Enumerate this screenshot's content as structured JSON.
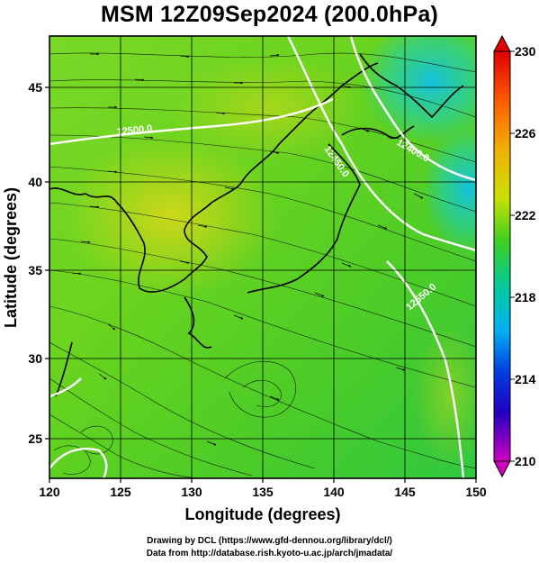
{
  "title": "MSM 12Z09Sep2024 (200.0hPa)",
  "axes": {
    "x_title": "Longitude (degrees)",
    "y_title": "Latitude  (degrees)",
    "x_ticks": [
      "120",
      "125",
      "130",
      "135",
      "140",
      "145",
      "150"
    ],
    "y_ticks": [
      "25",
      "30",
      "35",
      "40",
      "45"
    ]
  },
  "colorbar": {
    "ticks": [
      "230",
      "226",
      "222",
      "218",
      "214",
      "210"
    ],
    "min": 210,
    "max": 230
  },
  "contour_labels": [
    "12500.0",
    "12450.0",
    "12400.0",
    "12550.0"
  ],
  "credits": {
    "line1": "Drawing by DCL (https://www.gfd-dennou.org/library/dcl/)",
    "line2": "Data from http://database.rish.kyoto-u.ac.jp/arch/jmadata/"
  },
  "chart_data": {
    "type": "heatmap",
    "variable": "temperature with wind streamlines and geopotential height contours",
    "xlim": [
      120,
      150
    ],
    "ylim": [
      22.4,
      47.6
    ],
    "colorbar_range": [
      210,
      230
    ],
    "colors": {
      "warm": "#e0e020",
      "mid": "#50d020",
      "cool": "#10c8e0",
      "cold": "#0060e0"
    }
  }
}
